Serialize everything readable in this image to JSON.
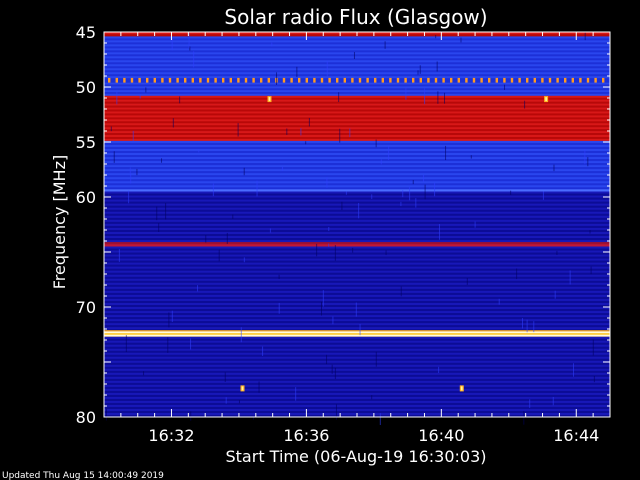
{
  "chart_data": {
    "type": "heatmap",
    "title": "Solar radio Flux (Glasgow)",
    "ylabel": "Frequency [MHz]",
    "xlabel": "Start Time (06-Aug-19 16:30:03)",
    "footer": "Updated Thu Aug 15 14:00:49 2019",
    "y_axis": {
      "min": 45,
      "max": 80,
      "inverted": true,
      "ticks": [
        45,
        50,
        55,
        60,
        65,
        70,
        75,
        80
      ],
      "tick_labels": [
        "45",
        "50",
        "55",
        "60",
        "",
        "70",
        "",
        "80"
      ]
    },
    "x_axis": {
      "start_minutes": 0,
      "end_minutes": 15,
      "ticks": [
        2,
        6,
        10,
        14
      ],
      "tick_labels": [
        "16:32",
        "16:36",
        "16:40",
        "16:44"
      ]
    },
    "colors": {
      "background": "#000000",
      "low": "#0a0a8c",
      "mid": "#1e2fe0",
      "high": "#e01010",
      "peak": "#fff6c8"
    },
    "bands": [
      {
        "from": 45.0,
        "to": 45.4,
        "intensity": "red"
      },
      {
        "from": 45.4,
        "to": 49.2,
        "intensity": "blue"
      },
      {
        "from": 49.2,
        "to": 49.6,
        "intensity": "dotted-orange"
      },
      {
        "from": 49.6,
        "to": 50.8,
        "intensity": "blue"
      },
      {
        "from": 50.8,
        "to": 54.9,
        "intensity": "red"
      },
      {
        "from": 54.9,
        "to": 59.3,
        "intensity": "blue"
      },
      {
        "from": 59.3,
        "to": 59.5,
        "intensity": "light-blue"
      },
      {
        "from": 59.5,
        "to": 64.1,
        "intensity": "dark-blue"
      },
      {
        "from": 64.1,
        "to": 64.5,
        "intensity": "dark-red"
      },
      {
        "from": 64.5,
        "to": 72.2,
        "intensity": "dark-blue"
      },
      {
        "from": 72.2,
        "to": 72.7,
        "intensity": "bright-yellow"
      },
      {
        "from": 72.7,
        "to": 80.0,
        "intensity": "dark-blue"
      }
    ],
    "spots": [
      {
        "time": 4.9,
        "freq": 51.1
      },
      {
        "time": 13.1,
        "freq": 51.1
      },
      {
        "time": 4.1,
        "freq": 77.4
      },
      {
        "time": 10.6,
        "freq": 77.4
      }
    ],
    "grid": false
  }
}
